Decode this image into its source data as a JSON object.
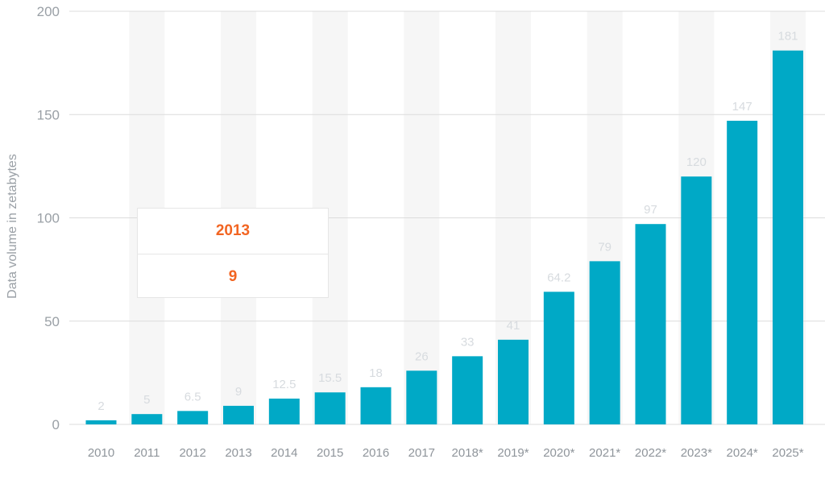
{
  "chart_data": {
    "type": "bar",
    "categories": [
      "2010",
      "2011",
      "2012",
      "2013",
      "2014",
      "2015",
      "2016",
      "2017",
      "2018*",
      "2019*",
      "2020*",
      "2021*",
      "2022*",
      "2023*",
      "2024*",
      "2025*"
    ],
    "values": [
      2,
      5,
      6.5,
      9,
      12.5,
      15.5,
      18,
      26,
      33,
      41,
      64.2,
      79,
      97,
      120,
      147,
      181
    ],
    "value_labels": [
      "2",
      "5",
      "6.5",
      "9",
      "12.5",
      "15.5",
      "18",
      "26",
      "33",
      "41",
      "64.2",
      "79",
      "97",
      "120",
      "147",
      "181"
    ],
    "ylabel": "Data volume in zetabytes",
    "ylim": [
      0,
      200
    ],
    "yticks": [
      0,
      50,
      100,
      150,
      200
    ],
    "grid": true,
    "bar_color": "#00a9c6"
  },
  "tooltip": {
    "category": "2013",
    "value": "9",
    "color": "#f26522"
  }
}
